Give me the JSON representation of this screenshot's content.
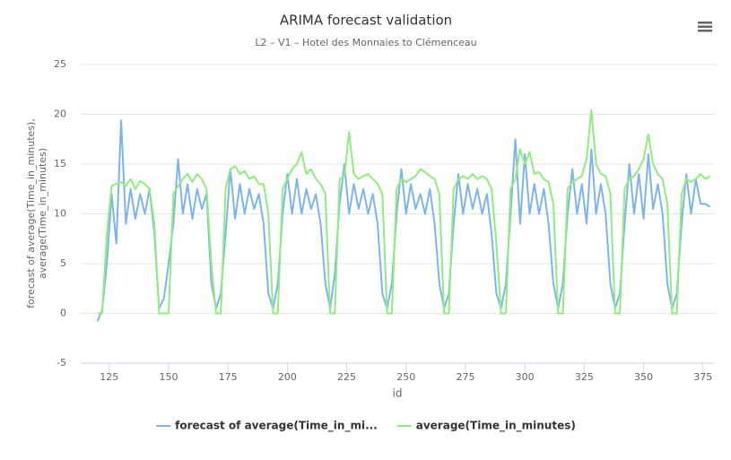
{
  "chart_data": {
    "type": "line",
    "title": "ARIMA forecast validation",
    "subtitle": "L2 – V1 – Hotel des Monnaies to Clémenceau",
    "x_label": "id",
    "y_label": [
      "forecast of average(Time_in_minutes),",
      "average(Time_in_minutes)"
    ],
    "xlim": [
      113,
      380
    ],
    "ylim": [
      -5,
      25
    ],
    "xticks": [
      125,
      150,
      175,
      200,
      225,
      250,
      275,
      300,
      325,
      350,
      375
    ],
    "yticks": [
      -5,
      0,
      5,
      10,
      15,
      20,
      25
    ],
    "grid": true,
    "legend": "bottom",
    "x": [
      120,
      122,
      124,
      126,
      128,
      130,
      132,
      134,
      136,
      138,
      140,
      142,
      144,
      146,
      148,
      150,
      152,
      154,
      156,
      158,
      160,
      162,
      164,
      166,
      168,
      170,
      172,
      174,
      176,
      178,
      180,
      182,
      184,
      186,
      188,
      190,
      192,
      194,
      196,
      198,
      200,
      202,
      204,
      206,
      208,
      210,
      212,
      214,
      216,
      218,
      220,
      222,
      224,
      226,
      228,
      230,
      232,
      234,
      236,
      238,
      240,
      242,
      244,
      246,
      248,
      250,
      252,
      254,
      256,
      258,
      260,
      262,
      264,
      266,
      268,
      270,
      272,
      274,
      276,
      278,
      280,
      282,
      284,
      286,
      288,
      290,
      292,
      294,
      296,
      298,
      300,
      302,
      304,
      306,
      308,
      310,
      312,
      314,
      316,
      318,
      320,
      322,
      324,
      326,
      328,
      330,
      332,
      334,
      336,
      338,
      340,
      342,
      344,
      346,
      348,
      350,
      352,
      354,
      356,
      358,
      360,
      362,
      364,
      366,
      368,
      370,
      372,
      374,
      376,
      378
    ],
    "series": [
      {
        "name": "forecast of average(Time_in_mi...",
        "color": "#7cb5ec",
        "values": [
          -0.8,
          0.3,
          5,
          12,
          7,
          19.4,
          9,
          12.5,
          9.5,
          12,
          10,
          12.5,
          8,
          0.5,
          1.5,
          5,
          9,
          15.5,
          10,
          13,
          9.5,
          12.5,
          10.5,
          12,
          3,
          0.5,
          2,
          8,
          14.5,
          9.5,
          13,
          10,
          12.5,
          10.5,
          12,
          9,
          2,
          0.5,
          3,
          10,
          14,
          10,
          13.5,
          10,
          12.5,
          10.5,
          12,
          9,
          3,
          0.5,
          4,
          11,
          15,
          10,
          13,
          10.5,
          12.5,
          10,
          12,
          9,
          2,
          0.5,
          3,
          10,
          14.5,
          10,
          13,
          10.5,
          12,
          10,
          12.5,
          9,
          3,
          0.5,
          2,
          9,
          14,
          10,
          13,
          10.5,
          12.5,
          10,
          12,
          8,
          2,
          0.5,
          3,
          10,
          17.5,
          9,
          16,
          10,
          13,
          10,
          12.5,
          9,
          3,
          0.5,
          3,
          10,
          14.5,
          10,
          13,
          9,
          16.5,
          10,
          13,
          10,
          3,
          0.5,
          2,
          9,
          15,
          10,
          14,
          9.5,
          16,
          10.5,
          13,
          10,
          3,
          0.5,
          2,
          9,
          14,
          10,
          13.5,
          11,
          11,
          10.7
        ]
      },
      {
        "name": "average(Time_in_minutes)",
        "color": "#90ed7d",
        "values": [
          0,
          0,
          8,
          12.8,
          13,
          13.2,
          12.8,
          13.5,
          12.5,
          13.3,
          13,
          12.5,
          9,
          0,
          0,
          0,
          12,
          12.8,
          13.5,
          14,
          13.2,
          14,
          13.5,
          12.5,
          5,
          0,
          0,
          12.5,
          14.5,
          14.8,
          14,
          14.3,
          13.5,
          13.8,
          13,
          13,
          10,
          0,
          0,
          12.5,
          13.5,
          14.5,
          15,
          16.2,
          14,
          14.5,
          13.5,
          13,
          12,
          0,
          0,
          13.5,
          13.8,
          18.2,
          14,
          13.5,
          13.8,
          14,
          13.5,
          13,
          12,
          0,
          0,
          12.5,
          13.5,
          13.2,
          13.5,
          13.8,
          14.5,
          14.2,
          13.8,
          13.5,
          12,
          0,
          0,
          12.5,
          13.5,
          13.8,
          13.5,
          14,
          13.5,
          13.8,
          13.5,
          12.5,
          7,
          0,
          0,
          12.5,
          13.5,
          16.5,
          15,
          16.2,
          14,
          14.2,
          13.5,
          13.2,
          11,
          0,
          0,
          12.5,
          13.2,
          13.5,
          13.8,
          15.5,
          20.4,
          15,
          14,
          13.8,
          12,
          0,
          0,
          12.5,
          13.5,
          13.8,
          14.5,
          15.5,
          18,
          15,
          14,
          13.5,
          11,
          0,
          0,
          12,
          13.5,
          13.2,
          13.5,
          14,
          13.5,
          13.8
        ]
      }
    ]
  }
}
